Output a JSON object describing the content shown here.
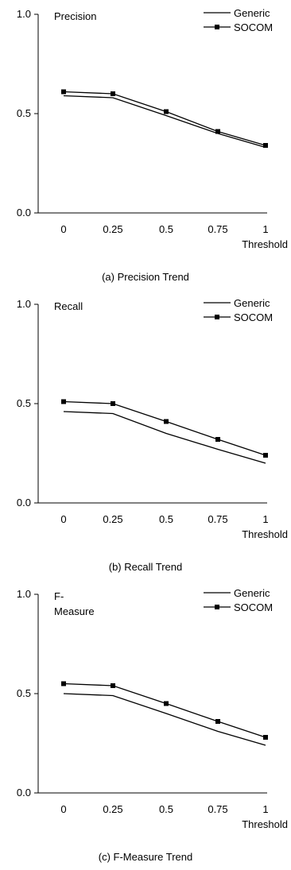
{
  "chart_data": [
    {
      "type": "line",
      "title": "Precision",
      "caption": "(a) Precision Trend",
      "xlabel": "Threshold",
      "categories": [
        "0",
        "0.25",
        "0.5",
        "0.75",
        "1"
      ],
      "ylim": [
        0,
        1
      ],
      "yticks": [
        "0.0",
        "0.5",
        "1.0"
      ],
      "legend_position": "top-right",
      "series": [
        {
          "name": "Generic",
          "marker": "none",
          "values": [
            0.59,
            0.58,
            0.49,
            0.4,
            0.33
          ]
        },
        {
          "name": "SOCOM",
          "marker": "square",
          "values": [
            0.61,
            0.6,
            0.51,
            0.41,
            0.34
          ]
        }
      ]
    },
    {
      "type": "line",
      "title": "Recall",
      "caption": "(b) Recall Trend",
      "xlabel": "Threshold",
      "categories": [
        "0",
        "0.25",
        "0.5",
        "0.75",
        "1"
      ],
      "ylim": [
        0,
        1
      ],
      "yticks": [
        "0.0",
        "0.5",
        "1.0"
      ],
      "legend_position": "top-right",
      "series": [
        {
          "name": "Generic",
          "marker": "none",
          "values": [
            0.46,
            0.45,
            0.35,
            0.27,
            0.2
          ]
        },
        {
          "name": "SOCOM",
          "marker": "square",
          "values": [
            0.51,
            0.5,
            0.41,
            0.32,
            0.24
          ]
        }
      ]
    },
    {
      "type": "line",
      "title": "F-\nMeasure",
      "caption": "(c) F-Measure Trend",
      "xlabel": "Threshold",
      "categories": [
        "0",
        "0.25",
        "0.5",
        "0.75",
        "1"
      ],
      "ylim": [
        0,
        1
      ],
      "yticks": [
        "0.0",
        "0.5",
        "1.0"
      ],
      "legend_position": "top-right",
      "series": [
        {
          "name": "Generic",
          "marker": "none",
          "values": [
            0.5,
            0.49,
            0.4,
            0.31,
            0.24
          ]
        },
        {
          "name": "SOCOM",
          "marker": "square",
          "values": [
            0.55,
            0.54,
            0.45,
            0.36,
            0.28
          ]
        }
      ]
    }
  ]
}
